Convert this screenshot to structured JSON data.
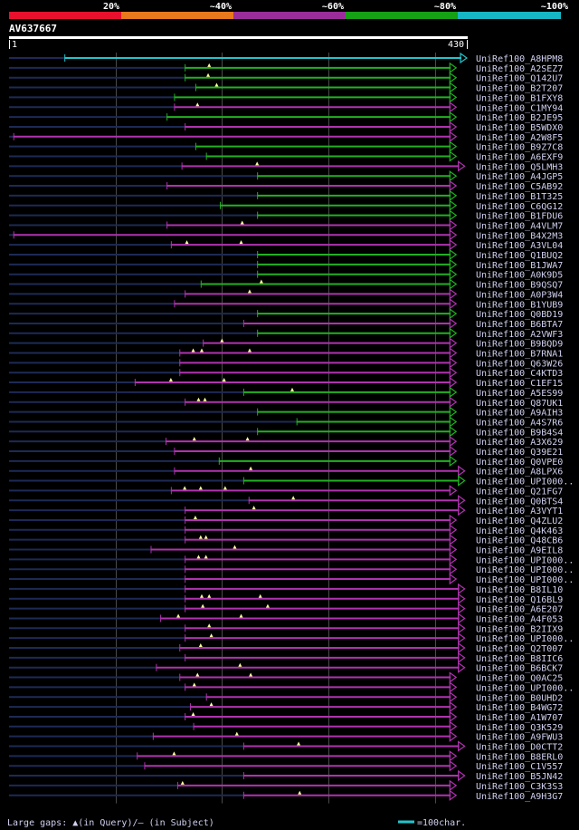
{
  "query_id": "AV637667",
  "query_start": "1",
  "query_end": "430",
  "legend_left": "Large gaps: ▲(in Query)/— (in Subject)",
  "legend_right": "=100char.",
  "colors": {
    "background": "#000000",
    "bin_20": "#e8112d",
    "bin_40": "#e8791c",
    "bin_60": "#9b2d9b",
    "bin_80": "#15a015",
    "bin_100": "#16b6c4",
    "purple_line": "#b033b0",
    "green_line": "#22b022",
    "cyan_line": "#22c4cc",
    "dark_line": "#1d2a55",
    "gap_triangle": "#ffffa0",
    "grid": "#4a4a4a",
    "label_text": "#d0d0f0"
  },
  "chart_data": {
    "type": "alignment-overview",
    "title": "AV637667",
    "query_length": 430,
    "identity_bins": [
      {
        "label": "20%",
        "color": "#e8112d"
      },
      {
        "label": "~40%",
        "color": "#e8791c"
      },
      {
        "label": "~60%",
        "color": "#9b2d9b"
      },
      {
        "label": "~80%",
        "color": "#15a015"
      },
      {
        "label": "~100%",
        "color": "#16b6c4"
      }
    ],
    "gridlines": [
      100,
      200,
      300,
      400
    ],
    "hits": [
      {
        "id": "UniRef100_A8HPM8",
        "start": 52,
        "end": 430,
        "cls": "cyan",
        "gaps": []
      },
      {
        "id": "UniRef100_A2SEZ7",
        "start": 165,
        "end": 420,
        "cls": "green",
        "gaps": [
          188
        ]
      },
      {
        "id": "UniRef100_Q142U7",
        "start": 165,
        "end": 420,
        "cls": "green",
        "gaps": [
          187
        ]
      },
      {
        "id": "UniRef100_B2T207",
        "start": 175,
        "end": 420,
        "cls": "green",
        "gaps": [
          195
        ]
      },
      {
        "id": "UniRef100_B1FXY8",
        "start": 155,
        "end": 420,
        "cls": "green",
        "gaps": []
      },
      {
        "id": "UniRef100_C1MY94",
        "start": 155,
        "end": 420,
        "cls": "purple",
        "gaps": [
          177
        ]
      },
      {
        "id": "UniRef100_B2JE95",
        "start": 148,
        "end": 420,
        "cls": "green",
        "gaps": []
      },
      {
        "id": "UniRef100_B5WDX0",
        "start": 165,
        "end": 420,
        "cls": "purple",
        "gaps": []
      },
      {
        "id": "UniRef100_A2W8F5",
        "start": 4,
        "end": 420,
        "cls": "purple",
        "gaps": []
      },
      {
        "id": "UniRef100_B9Z7C8",
        "start": 175,
        "end": 420,
        "cls": "green",
        "gaps": []
      },
      {
        "id": "UniRef100_A6EXF9",
        "start": 185,
        "end": 420,
        "cls": "green",
        "gaps": []
      },
      {
        "id": "UniRef100_Q5LMH3",
        "start": 162,
        "end": 428,
        "cls": "purple",
        "gaps": [
          233
        ]
      },
      {
        "id": "UniRef100_A4JGP5",
        "start": 233,
        "end": 420,
        "cls": "green",
        "gaps": []
      },
      {
        "id": "UniRef100_C5AB92",
        "start": 148,
        "end": 420,
        "cls": "purple",
        "gaps": []
      },
      {
        "id": "UniRef100_B1T325",
        "start": 233,
        "end": 420,
        "cls": "green",
        "gaps": []
      },
      {
        "id": "UniRef100_C6QG12",
        "start": 198,
        "end": 420,
        "cls": "green",
        "gaps": []
      },
      {
        "id": "UniRef100_B1FDU6",
        "start": 233,
        "end": 420,
        "cls": "green",
        "gaps": []
      },
      {
        "id": "UniRef100_A4VLM7",
        "start": 148,
        "end": 420,
        "cls": "purple",
        "gaps": [
          219
        ]
      },
      {
        "id": "UniRef100_B4X2M3",
        "start": 4,
        "end": 420,
        "cls": "purple",
        "gaps": []
      },
      {
        "id": "UniRef100_A3VL04",
        "start": 152,
        "end": 420,
        "cls": "purple",
        "gaps": [
          167,
          218
        ]
      },
      {
        "id": "UniRef100_Q1BUQ2",
        "start": 233,
        "end": 420,
        "cls": "green",
        "gaps": []
      },
      {
        "id": "UniRef100_B1JWA7",
        "start": 233,
        "end": 420,
        "cls": "green",
        "gaps": []
      },
      {
        "id": "UniRef100_A0K9D5",
        "start": 233,
        "end": 420,
        "cls": "green",
        "gaps": []
      },
      {
        "id": "UniRef100_B9QSQ7",
        "start": 180,
        "end": 420,
        "cls": "green",
        "gaps": [
          237
        ]
      },
      {
        "id": "UniRef100_A0P3W4",
        "start": 165,
        "end": 420,
        "cls": "purple",
        "gaps": [
          226
        ]
      },
      {
        "id": "UniRef100_B1YUB9",
        "start": 155,
        "end": 420,
        "cls": "purple",
        "gaps": []
      },
      {
        "id": "UniRef100_Q0BD19",
        "start": 233,
        "end": 420,
        "cls": "green",
        "gaps": []
      },
      {
        "id": "UniRef100_B6BTA7",
        "start": 220,
        "end": 420,
        "cls": "purple",
        "gaps": []
      },
      {
        "id": "UniRef100_A2VWF3",
        "start": 233,
        "end": 420,
        "cls": "green",
        "gaps": []
      },
      {
        "id": "UniRef100_B9BQD9",
        "start": 182,
        "end": 420,
        "cls": "purple",
        "gaps": [
          200
        ]
      },
      {
        "id": "UniRef100_B7RNA1",
        "start": 160,
        "end": 420,
        "cls": "purple",
        "gaps": [
          173,
          181,
          226
        ]
      },
      {
        "id": "UniRef100_Q63W26",
        "start": 160,
        "end": 420,
        "cls": "purple",
        "gaps": []
      },
      {
        "id": "UniRef100_C4KTD3",
        "start": 160,
        "end": 420,
        "cls": "purple",
        "gaps": []
      },
      {
        "id": "UniRef100_C1EF15",
        "start": 118,
        "end": 420,
        "cls": "purple",
        "gaps": [
          152,
          202
        ]
      },
      {
        "id": "UniRef100_A5ES99",
        "start": 220,
        "end": 420,
        "cls": "green",
        "gaps": [
          266
        ]
      },
      {
        "id": "UniRef100_Q87UK1",
        "start": 165,
        "end": 420,
        "cls": "purple",
        "gaps": [
          178,
          184
        ]
      },
      {
        "id": "UniRef100_A9AIH3",
        "start": 233,
        "end": 420,
        "cls": "green",
        "gaps": []
      },
      {
        "id": "UniRef100_A4S7R6",
        "start": 270,
        "end": 420,
        "cls": "green",
        "gaps": []
      },
      {
        "id": "UniRef100_B9B4S4",
        "start": 233,
        "end": 420,
        "cls": "green",
        "gaps": []
      },
      {
        "id": "UniRef100_A3X629",
        "start": 147,
        "end": 420,
        "cls": "purple",
        "gaps": [
          174,
          224
        ]
      },
      {
        "id": "UniRef100_Q39E21",
        "start": 155,
        "end": 420,
        "cls": "purple",
        "gaps": []
      },
      {
        "id": "UniRef100_Q0VPE0",
        "start": 197,
        "end": 420,
        "cls": "green",
        "gaps": []
      },
      {
        "id": "UniRef100_A8LPX6",
        "start": 155,
        "end": 428,
        "cls": "purple",
        "gaps": [
          227
        ]
      },
      {
        "id": "UniRef100_UPI000..",
        "start": 220,
        "end": 428,
        "cls": "green",
        "gaps": []
      },
      {
        "id": "UniRef100_Q21FG7",
        "start": 152,
        "end": 420,
        "cls": "purple",
        "gaps": [
          165,
          180,
          203
        ]
      },
      {
        "id": "UniRef100_Q0BTS4",
        "start": 225,
        "end": 428,
        "cls": "purple",
        "gaps": [
          267
        ]
      },
      {
        "id": "UniRef100_A3VYT1",
        "start": 165,
        "end": 428,
        "cls": "purple",
        "gaps": [
          230
        ]
      },
      {
        "id": "UniRef100_Q4ZLU2",
        "start": 165,
        "end": 420,
        "cls": "purple",
        "gaps": [
          175
        ]
      },
      {
        "id": "UniRef100_Q4K463",
        "start": 165,
        "end": 420,
        "cls": "purple",
        "gaps": []
      },
      {
        "id": "UniRef100_Q48CB6",
        "start": 165,
        "end": 420,
        "cls": "purple",
        "gaps": [
          180,
          185
        ]
      },
      {
        "id": "UniRef100_A9EIL8",
        "start": 133,
        "end": 420,
        "cls": "purple",
        "gaps": [
          212
        ]
      },
      {
        "id": "UniRef100_UPI000..",
        "start": 165,
        "end": 420,
        "cls": "purple",
        "gaps": [
          178,
          185
        ]
      },
      {
        "id": "UniRef100_UPI000..",
        "start": 165,
        "end": 420,
        "cls": "purple",
        "gaps": []
      },
      {
        "id": "UniRef100_UPI000..",
        "start": 165,
        "end": 420,
        "cls": "purple",
        "gaps": []
      },
      {
        "id": "UniRef100_B8IL10",
        "start": 165,
        "end": 428,
        "cls": "purple",
        "gaps": []
      },
      {
        "id": "UniRef100_Q16BL9",
        "start": 165,
        "end": 428,
        "cls": "purple",
        "gaps": [
          181,
          188,
          236
        ]
      },
      {
        "id": "UniRef100_A6E207",
        "start": 165,
        "end": 428,
        "cls": "purple",
        "gaps": [
          182,
          243
        ]
      },
      {
        "id": "UniRef100_A4F053",
        "start": 142,
        "end": 428,
        "cls": "purple",
        "gaps": [
          159,
          218
        ]
      },
      {
        "id": "UniRef100_B2IIX9",
        "start": 165,
        "end": 428,
        "cls": "purple",
        "gaps": [
          188
        ]
      },
      {
        "id": "UniRef100_UPI000..",
        "start": 165,
        "end": 428,
        "cls": "purple",
        "gaps": [
          190
        ]
      },
      {
        "id": "UniRef100_Q2T007",
        "start": 160,
        "end": 428,
        "cls": "purple",
        "gaps": [
          180
        ]
      },
      {
        "id": "UniRef100_B8IIC6",
        "start": 165,
        "end": 428,
        "cls": "purple",
        "gaps": []
      },
      {
        "id": "UniRef100_B6BCK7",
        "start": 138,
        "end": 428,
        "cls": "purple",
        "gaps": [
          217
        ]
      },
      {
        "id": "UniRef100_Q0AC25",
        "start": 160,
        "end": 420,
        "cls": "purple",
        "gaps": [
          177,
          227
        ]
      },
      {
        "id": "UniRef100_UPI000..",
        "start": 165,
        "end": 420,
        "cls": "purple",
        "gaps": [
          174
        ]
      },
      {
        "id": "UniRef100_B0UHD2",
        "start": 185,
        "end": 420,
        "cls": "purple",
        "gaps": []
      },
      {
        "id": "UniRef100_B4WG72",
        "start": 170,
        "end": 420,
        "cls": "purple",
        "gaps": [
          190
        ]
      },
      {
        "id": "UniRef100_A1W707",
        "start": 165,
        "end": 420,
        "cls": "purple",
        "gaps": [
          173
        ]
      },
      {
        "id": "UniRef100_Q3K529",
        "start": 173,
        "end": 420,
        "cls": "purple",
        "gaps": []
      },
      {
        "id": "UniRef100_A9FWU3",
        "start": 135,
        "end": 420,
        "cls": "purple",
        "gaps": [
          214
        ]
      },
      {
        "id": "UniRef100_D0CTT2",
        "start": 220,
        "end": 428,
        "cls": "purple",
        "gaps": [
          272
        ]
      },
      {
        "id": "UniRef100_B8ERL0",
        "start": 120,
        "end": 420,
        "cls": "purple",
        "gaps": [
          155
        ]
      },
      {
        "id": "UniRef100_C1V557",
        "start": 127,
        "end": 420,
        "cls": "purple",
        "gaps": []
      },
      {
        "id": "UniRef100_B5JN42",
        "start": 220,
        "end": 428,
        "cls": "purple",
        "gaps": []
      },
      {
        "id": "UniRef100_C3K3S3",
        "start": 158,
        "end": 420,
        "cls": "purple",
        "gaps": [
          163
        ]
      },
      {
        "id": "UniRef100_A9H3G7",
        "start": 220,
        "end": 420,
        "cls": "purple",
        "gaps": [
          273
        ]
      }
    ]
  }
}
